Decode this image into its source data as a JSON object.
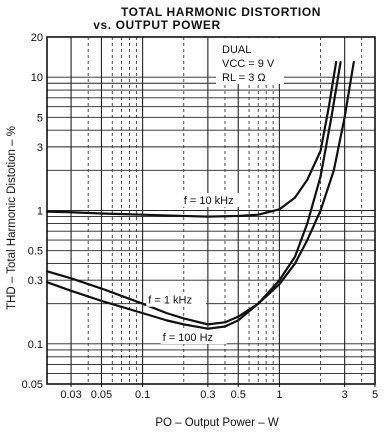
{
  "chart_data": {
    "type": "line",
    "title": "TOTAL HARMONIC DISTORTION",
    "subtitle": "vs. OUTPUT POWER",
    "xlabel": "PO – Output Power – W",
    "ylabel": "THD – Total Harmonic Distotion – %",
    "x_scale": "log",
    "y_scale": "log",
    "xlim": [
      0.02,
      5
    ],
    "ylim": [
      0.05,
      20
    ],
    "x_ticks": [
      0.03,
      0.05,
      0.1,
      0.3,
      0.5,
      1,
      3,
      5
    ],
    "x_tick_labels": [
      "0.03",
      "0.05",
      "0.1",
      "0.3",
      "0.5",
      "1",
      "3",
      "5"
    ],
    "y_ticks": [
      0.05,
      0.1,
      0.3,
      0.5,
      1,
      3,
      5,
      10,
      20
    ],
    "y_tick_labels": [
      "0.05",
      "0.1",
      "0.3",
      "0.5",
      "1",
      "3",
      "5",
      "10",
      "20"
    ],
    "grid": true,
    "annotations": {
      "line1": "DUAL",
      "line2": "VCC = 9 V",
      "line3": "RL = 3 Ω"
    },
    "series": [
      {
        "name": "f = 10 kHz",
        "x": [
          0.02,
          0.03,
          0.05,
          0.1,
          0.2,
          0.3,
          0.5,
          0.7,
          1.0,
          1.3,
          1.6,
          2.0,
          2.3,
          2.6
        ],
        "y": [
          0.98,
          0.97,
          0.95,
          0.93,
          0.91,
          0.9,
          0.91,
          0.93,
          1.02,
          1.25,
          1.7,
          2.8,
          6.0,
          13.0
        ]
      },
      {
        "name": "f = 1 kHz",
        "x": [
          0.02,
          0.03,
          0.05,
          0.1,
          0.15,
          0.2,
          0.3,
          0.4,
          0.5,
          0.7,
          1.0,
          1.3,
          1.6,
          2.0,
          2.4,
          2.8
        ],
        "y": [
          0.35,
          0.31,
          0.26,
          0.2,
          0.17,
          0.155,
          0.14,
          0.145,
          0.16,
          0.2,
          0.3,
          0.45,
          0.8,
          1.8,
          5.0,
          13.0
        ]
      },
      {
        "name": "f = 100 Hz",
        "x": [
          0.02,
          0.03,
          0.05,
          0.1,
          0.15,
          0.2,
          0.3,
          0.4,
          0.5,
          0.7,
          1.0,
          1.3,
          1.6,
          2.0,
          2.5,
          3.0,
          3.5
        ],
        "y": [
          0.29,
          0.25,
          0.21,
          0.17,
          0.15,
          0.14,
          0.13,
          0.135,
          0.15,
          0.2,
          0.28,
          0.4,
          0.6,
          1.0,
          2.0,
          5.0,
          13.0
        ]
      }
    ]
  }
}
